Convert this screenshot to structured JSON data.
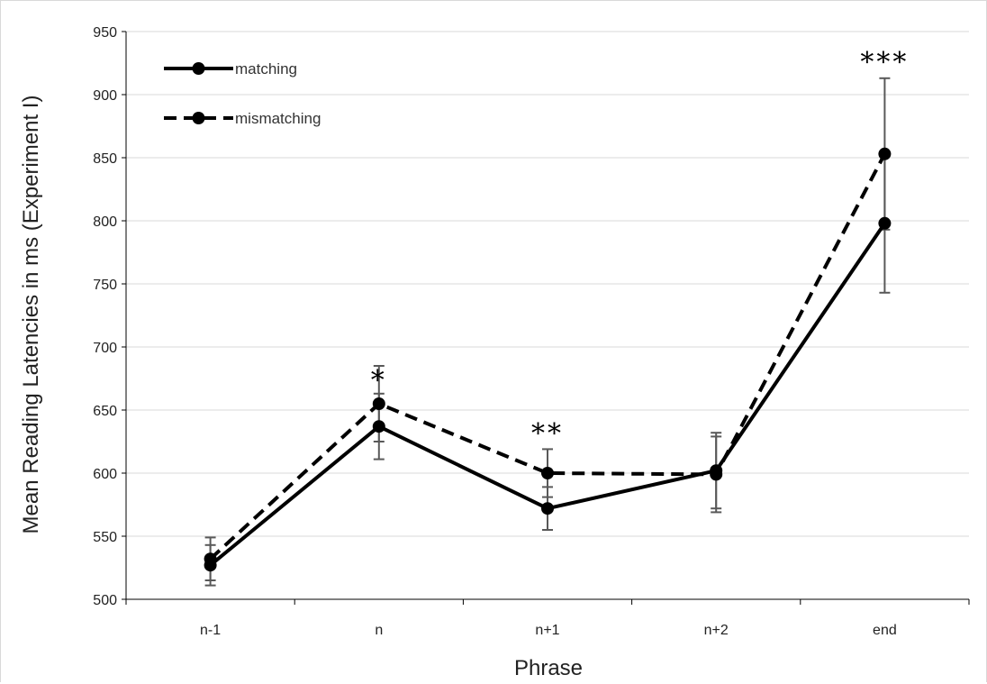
{
  "chart_data": {
    "type": "line",
    "categories": [
      "n-1",
      "n",
      "n+1",
      "n+2",
      "end"
    ],
    "xlabel": "Phrase",
    "ylabel": "Mean Reading Latencies in ms (Experiment I)",
    "ylim": [
      500,
      950
    ],
    "yticks": [
      500,
      550,
      600,
      650,
      700,
      750,
      800,
      850,
      900,
      950
    ],
    "grid": true,
    "legend_position": "top-left",
    "series": [
      {
        "name": "matching",
        "style": "solid",
        "values": [
          527,
          637,
          572,
          602,
          798
        ],
        "error": [
          16,
          26,
          17,
          30,
          55
        ]
      },
      {
        "name": "mismatching",
        "style": "dashed",
        "values": [
          532,
          655,
          600,
          599,
          853
        ],
        "error": [
          17,
          30,
          19,
          30,
          60
        ]
      }
    ],
    "annotations": [
      {
        "category": "n",
        "text": "*",
        "y": 675
      },
      {
        "category": "n+1",
        "text": "**",
        "y": 633
      },
      {
        "category": "end",
        "text": "***",
        "y": 927
      }
    ],
    "colors": {
      "line": "#000000",
      "errorbar": "#595959",
      "grid": "#d9d9d9",
      "axis": "#000000"
    }
  }
}
